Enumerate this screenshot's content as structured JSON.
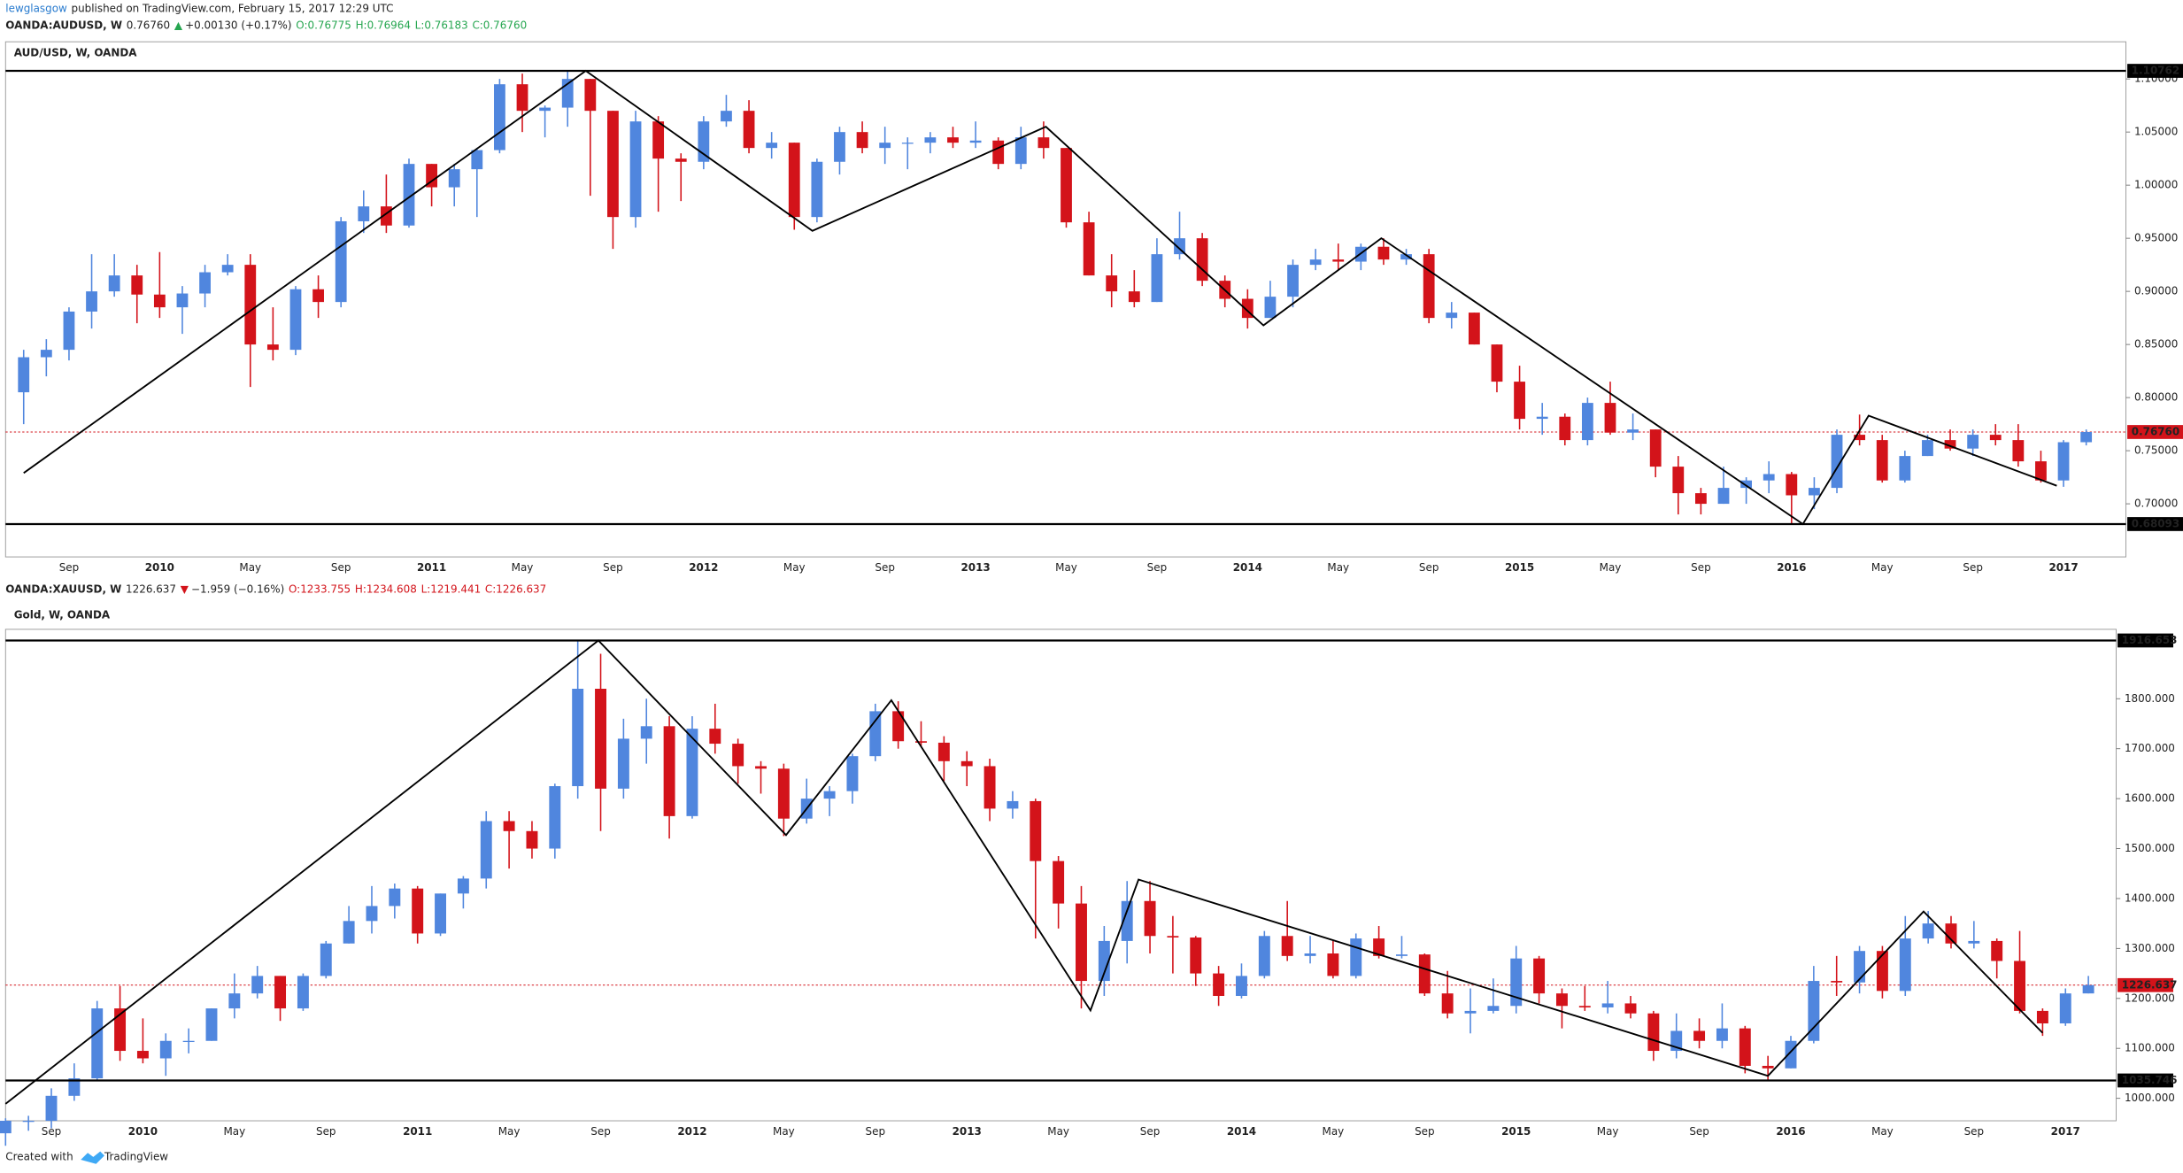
{
  "header": {
    "author": "lewglasgow",
    "published": "published on TradingView.com, February 15, 2017 12:29 UTC"
  },
  "footer": {
    "created": "Created with",
    "brand": "TradingView"
  },
  "chart_data": [
    {
      "type": "candlestick",
      "title": "AUD/USD, W, OANDA",
      "quote": {
        "symbol": "OANDA:AUDUSD, W",
        "last": "0.76760",
        "arrow": "▲",
        "change": "+0.00130 (+0.17%)",
        "open": "O:0.76775",
        "high": "H:0.76964",
        "low": "L:0.76183",
        "close": "C:0.76760"
      },
      "up_color": "#5086de",
      "down_color": "#d3131a",
      "arrow_color": "#26a650",
      "categories": [
        null,
        null,
        "Sep",
        null,
        null,
        null,
        "2010",
        null,
        null,
        null,
        "May",
        null,
        null,
        null,
        "Sep",
        null,
        null,
        null,
        "2011",
        null,
        null,
        null,
        "May",
        null,
        null,
        null,
        "Sep",
        null,
        null,
        null,
        "2012",
        null,
        null,
        null,
        "May",
        null,
        null,
        null,
        "Sep",
        null,
        null,
        null,
        "2013",
        null,
        null,
        null,
        "May",
        null,
        null,
        null,
        "Sep",
        null,
        null,
        null,
        "2014",
        null,
        null,
        null,
        "May",
        null,
        null,
        null,
        "Sep",
        null,
        null,
        null,
        "2015",
        null,
        null,
        null,
        "May",
        null,
        null,
        null,
        "Sep",
        null,
        null,
        null,
        "2016",
        null,
        null,
        null,
        "May",
        null,
        null,
        null,
        "Sep",
        null,
        null,
        null,
        "2017",
        null
      ],
      "open": [
        0.805,
        0.838,
        0.845,
        0.881,
        0.9,
        0.915,
        0.897,
        0.885,
        0.898,
        0.918,
        0.925,
        0.85,
        0.845,
        0.902,
        0.89,
        0.966,
        0.98,
        0.962,
        1.02,
        0.998,
        1.015,
        1.033,
        1.095,
        1.07,
        1.073,
        1.1,
        1.07,
        0.97,
        1.06,
        1.025,
        1.022,
        1.06,
        1.07,
        1.035,
        1.04,
        0.97,
        1.022,
        1.05,
        1.035,
        1.04,
        1.04,
        1.045,
        1.04,
        1.042,
        1.02,
        1.045,
        1.035,
        0.965,
        0.915,
        0.9,
        0.89,
        0.935,
        0.95,
        0.91,
        0.893,
        0.875,
        0.895,
        0.925,
        0.93,
        0.928,
        0.942,
        0.93,
        0.935,
        0.875,
        0.88,
        0.85,
        0.815,
        0.78,
        0.782,
        0.76,
        0.795,
        0.767,
        0.77,
        0.735,
        0.71,
        0.7,
        0.715,
        0.722,
        0.728,
        0.708,
        0.715,
        0.765,
        0.76,
        0.722,
        0.745,
        0.76,
        0.752,
        0.765,
        0.76,
        0.74,
        0.722,
        0.758
      ],
      "high": [
        0.845,
        0.855,
        0.885,
        0.935,
        0.935,
        0.925,
        0.937,
        0.905,
        0.925,
        0.935,
        0.935,
        0.885,
        0.905,
        0.915,
        0.97,
        0.995,
        1.01,
        1.025,
        1.02,
        1.02,
        1.035,
        1.1,
        1.105,
        1.075,
        1.10762,
        1.1,
        1.07,
        1.07,
        1.065,
        1.03,
        1.065,
        1.085,
        1.08,
        1.05,
        1.04,
        1.025,
        1.055,
        1.06,
        1.055,
        1.045,
        1.05,
        1.055,
        1.06,
        1.045,
        1.055,
        1.06,
        1.035,
        0.975,
        0.935,
        0.92,
        0.95,
        0.975,
        0.955,
        0.915,
        0.902,
        0.91,
        0.93,
        0.94,
        0.945,
        0.945,
        0.95,
        0.94,
        0.94,
        0.89,
        0.88,
        0.85,
        0.83,
        0.795,
        0.785,
        0.8,
        0.815,
        0.785,
        0.77,
        0.745,
        0.715,
        0.735,
        0.725,
        0.74,
        0.73,
        0.725,
        0.77,
        0.784,
        0.765,
        0.75,
        0.765,
        0.77,
        0.77,
        0.775,
        0.775,
        0.75,
        0.76,
        0.77
      ],
      "low": [
        0.775,
        0.82,
        0.835,
        0.865,
        0.895,
        0.87,
        0.875,
        0.86,
        0.885,
        0.915,
        0.81,
        0.835,
        0.84,
        0.875,
        0.885,
        0.955,
        0.955,
        0.96,
        0.98,
        0.98,
        0.97,
        1.03,
        1.05,
        1.045,
        1.055,
        0.99,
        0.94,
        0.96,
        0.975,
        0.985,
        1.015,
        1.055,
        1.03,
        1.025,
        0.958,
        0.965,
        1.01,
        1.03,
        1.02,
        1.015,
        1.03,
        1.035,
        1.035,
        1.015,
        1.015,
        1.025,
        0.96,
        0.915,
        0.885,
        0.885,
        0.89,
        0.93,
        0.905,
        0.885,
        0.865,
        0.875,
        0.885,
        0.92,
        0.92,
        0.92,
        0.925,
        0.925,
        0.87,
        0.865,
        0.85,
        0.805,
        0.77,
        0.765,
        0.755,
        0.755,
        0.765,
        0.76,
        0.725,
        0.69,
        0.69,
        0.7,
        0.7,
        0.71,
        0.68093,
        0.695,
        0.71,
        0.755,
        0.72,
        0.72,
        0.745,
        0.75,
        0.745,
        0.755,
        0.735,
        0.72,
        0.716,
        0.755
      ],
      "close": [
        0.838,
        0.845,
        0.881,
        0.9,
        0.915,
        0.897,
        0.885,
        0.898,
        0.918,
        0.925,
        0.85,
        0.845,
        0.902,
        0.89,
        0.966,
        0.98,
        0.962,
        1.02,
        0.998,
        1.015,
        1.033,
        1.095,
        1.07,
        1.073,
        1.1,
        1.07,
        0.97,
        1.06,
        1.025,
        1.022,
        1.06,
        1.07,
        1.035,
        1.04,
        0.97,
        1.022,
        1.05,
        1.035,
        1.04,
        1.04,
        1.045,
        1.04,
        1.042,
        1.02,
        1.045,
        1.035,
        0.965,
        0.915,
        0.9,
        0.89,
        0.935,
        0.95,
        0.91,
        0.893,
        0.875,
        0.895,
        0.925,
        0.93,
        0.928,
        0.942,
        0.93,
        0.935,
        0.875,
        0.88,
        0.85,
        0.815,
        0.78,
        0.782,
        0.76,
        0.795,
        0.767,
        0.77,
        0.735,
        0.71,
        0.7,
        0.715,
        0.722,
        0.728,
        0.708,
        0.715,
        0.765,
        0.76,
        0.722,
        0.745,
        0.76,
        0.752,
        0.765,
        0.76,
        0.74,
        0.722,
        0.758,
        0.7676
      ],
      "ylim": [
        0.65,
        1.135
      ],
      "yticks": [
        {
          "value": 0.7,
          "label": "0.70000"
        },
        {
          "value": 0.75,
          "label": "0.75000"
        },
        {
          "value": 0.8,
          "label": "0.80000"
        },
        {
          "value": 0.85,
          "label": "0.85000"
        },
        {
          "value": 0.9,
          "label": "0.90000"
        },
        {
          "value": 0.95,
          "label": "0.95000"
        },
        {
          "value": 1.0,
          "label": "1.00000"
        },
        {
          "value": 1.05,
          "label": "1.05000"
        },
        {
          "value": 1.1,
          "label": "1.10000"
        }
      ],
      "levels": [
        {
          "value": 1.10762,
          "label": "1.10762"
        },
        {
          "value": 0.68093,
          "label": "0.68093"
        }
      ],
      "last_price": {
        "value": 0.7676,
        "label": "0.76760",
        "color": "#d3131a"
      },
      "zigzag": {
        "x": [
          0,
          24.8,
          34.8,
          45.1,
          54.7,
          59.9,
          78.5,
          81.4,
          89.7
        ],
        "values": [
          0.729,
          1.10762,
          0.957,
          1.055,
          0.868,
          0.95,
          0.68093,
          0.783,
          0.717
        ]
      }
    },
    {
      "type": "candlestick",
      "title": "Gold, W, OANDA",
      "quote": {
        "symbol": "OANDA:XAUUSD, W",
        "last": "1226.637",
        "arrow": "▼",
        "change": "−1.959 (−0.16%)",
        "open": "O:1233.755",
        "high": "H:1234.608",
        "low": "L:1219.441",
        "close": "C:1226.637"
      },
      "up_color": "#5086de",
      "down_color": "#d3131a",
      "arrow_color": "#d3131a",
      "categories": [
        null,
        null,
        "Sep",
        null,
        null,
        null,
        "2010",
        null,
        null,
        null,
        "May",
        null,
        null,
        null,
        "Sep",
        null,
        null,
        null,
        "2011",
        null,
        null,
        null,
        "May",
        null,
        null,
        null,
        "Sep",
        null,
        null,
        null,
        "2012",
        null,
        null,
        null,
        "May",
        null,
        null,
        null,
        "Sep",
        null,
        null,
        null,
        "2013",
        null,
        null,
        null,
        "May",
        null,
        null,
        null,
        "Sep",
        null,
        null,
        null,
        "2014",
        null,
        null,
        null,
        "May",
        null,
        null,
        null,
        "Sep",
        null,
        null,
        null,
        "2015",
        null,
        null,
        null,
        "May",
        null,
        null,
        null,
        "Sep",
        null,
        null,
        null,
        "2016",
        null,
        null,
        null,
        "May",
        null,
        null,
        null,
        "Sep",
        null,
        null,
        null,
        "2017",
        null
      ],
      "open": [
        930,
        955,
        955,
        1005,
        1040,
        1180,
        1095,
        1080,
        1115,
        1115,
        1180,
        1210,
        1245,
        1180,
        1245,
        1310,
        1355,
        1385,
        1420,
        1330,
        1410,
        1440,
        1555,
        1535,
        1500,
        1625,
        1820,
        1620,
        1720,
        1745,
        1565,
        1740,
        1710,
        1665,
        1660,
        1560,
        1600,
        1615,
        1685,
        1775,
        1715,
        1712,
        1675,
        1665,
        1580,
        1595,
        1475,
        1390,
        1235,
        1315,
        1395,
        1325,
        1322,
        1250,
        1205,
        1245,
        1325,
        1285,
        1290,
        1245,
        1320,
        1285,
        1288,
        1210,
        1170,
        1175,
        1185,
        1280,
        1210,
        1185,
        1182,
        1190,
        1170,
        1095,
        1135,
        1115,
        1140,
        1065,
        1060,
        1115,
        1235,
        1232,
        1295,
        1215,
        1320,
        1350,
        1310,
        1315,
        1275,
        1175,
        1150,
        1210
      ],
      "high": [
        960,
        965,
        1020,
        1070,
        1195,
        1225,
        1160,
        1130,
        1140,
        1180,
        1250,
        1265,
        1245,
        1250,
        1315,
        1385,
        1425,
        1430,
        1425,
        1410,
        1445,
        1575,
        1575,
        1555,
        1630,
        1916.653,
        1890,
        1760,
        1800,
        1765,
        1765,
        1790,
        1720,
        1675,
        1670,
        1640,
        1625,
        1690,
        1790,
        1795,
        1755,
        1725,
        1695,
        1680,
        1615,
        1600,
        1485,
        1425,
        1345,
        1435,
        1435,
        1365,
        1325,
        1265,
        1270,
        1335,
        1395,
        1325,
        1315,
        1330,
        1345,
        1325,
        1290,
        1255,
        1220,
        1240,
        1305,
        1285,
        1220,
        1225,
        1235,
        1205,
        1175,
        1170,
        1160,
        1190,
        1145,
        1085,
        1125,
        1265,
        1285,
        1305,
        1305,
        1365,
        1375,
        1365,
        1355,
        1320,
        1335,
        1180,
        1220,
        1245
      ],
      "low": [
        905,
        935,
        940,
        995,
        1035,
        1075,
        1070,
        1045,
        1090,
        1115,
        1160,
        1200,
        1155,
        1175,
        1240,
        1310,
        1330,
        1360,
        1310,
        1325,
        1380,
        1420,
        1460,
        1480,
        1480,
        1600,
        1535,
        1600,
        1670,
        1520,
        1560,
        1690,
        1630,
        1610,
        1525,
        1550,
        1565,
        1590,
        1675,
        1700,
        1705,
        1635,
        1625,
        1555,
        1560,
        1320,
        1340,
        1180,
        1205,
        1270,
        1290,
        1250,
        1225,
        1185,
        1200,
        1240,
        1275,
        1270,
        1240,
        1240,
        1280,
        1280,
        1205,
        1160,
        1130,
        1170,
        1170,
        1190,
        1140,
        1175,
        1170,
        1160,
        1075,
        1080,
        1100,
        1100,
        1050,
        1035.746,
        1060,
        1110,
        1205,
        1210,
        1200,
        1205,
        1310,
        1300,
        1300,
        1240,
        1170,
        1125,
        1145,
        1210
      ],
      "close": [
        955,
        955,
        1005,
        1040,
        1180,
        1095,
        1080,
        1115,
        1115,
        1180,
        1210,
        1245,
        1180,
        1245,
        1310,
        1355,
        1385,
        1420,
        1330,
        1410,
        1440,
        1555,
        1535,
        1500,
        1625,
        1820,
        1620,
        1720,
        1745,
        1565,
        1740,
        1710,
        1665,
        1660,
        1560,
        1600,
        1615,
        1685,
        1775,
        1715,
        1712,
        1675,
        1665,
        1580,
        1595,
        1475,
        1390,
        1235,
        1315,
        1395,
        1325,
        1322,
        1250,
        1205,
        1245,
        1325,
        1285,
        1290,
        1245,
        1320,
        1285,
        1288,
        1210,
        1170,
        1175,
        1185,
        1280,
        1210,
        1185,
        1182,
        1190,
        1170,
        1095,
        1135,
        1115,
        1140,
        1065,
        1060,
        1115,
        1235,
        1232,
        1295,
        1215,
        1320,
        1350,
        1310,
        1315,
        1275,
        1175,
        1150,
        1210,
        1226.637
      ],
      "ylim": [
        955,
        1939
      ],
      "yticks": [
        {
          "value": 1000,
          "label": "1000.000"
        },
        {
          "value": 1100,
          "label": "1100.000"
        },
        {
          "value": 1200,
          "label": "1200.000"
        },
        {
          "value": 1300,
          "label": "1300.000"
        },
        {
          "value": 1400,
          "label": "1400.000"
        },
        {
          "value": 1500,
          "label": "1500.000"
        },
        {
          "value": 1600,
          "label": "1600.000"
        },
        {
          "value": 1700,
          "label": "1700.000"
        },
        {
          "value": 1800,
          "label": "1800.000"
        }
      ],
      "levels": [
        {
          "value": 1916.653,
          "label": "1916.653"
        },
        {
          "value": 1035.746,
          "label": "1035.746"
        }
      ],
      "last_price": {
        "value": 1226.637,
        "label": "1226.637",
        "color": "#d3131a"
      },
      "zigzag": {
        "x": [
          0,
          25.9,
          34.1,
          38.7,
          47.4,
          49.5,
          77.0,
          83.8,
          89.0
        ],
        "values": [
          989,
          1916.653,
          1527,
          1797,
          1176,
          1438,
          1045,
          1374,
          1131
        ]
      }
    }
  ]
}
